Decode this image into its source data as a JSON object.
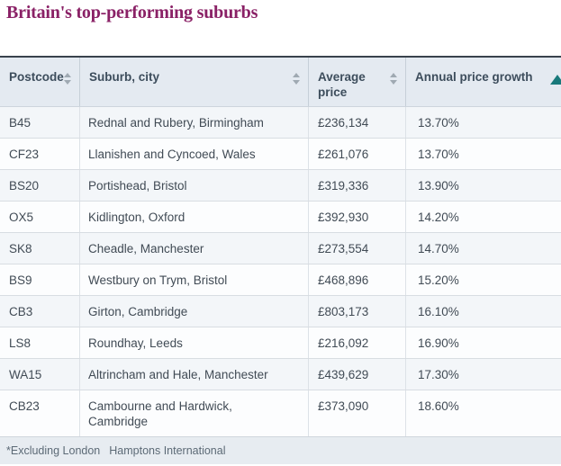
{
  "title": "Britain's top-performing suburbs",
  "colors": {
    "title_magenta": "#8a2166",
    "accent_teal": "#18797b",
    "header_bg": "#e4eaf1",
    "row_bg": "#f3f6f9"
  },
  "chart_data": {
    "type": "table",
    "title": "Britain's top-performing suburbs",
    "columns": [
      "Postcode",
      "Suburb, city",
      "Average price",
      "Annual price growth"
    ],
    "sort": {
      "column": "Annual price growth",
      "direction": "ascending"
    },
    "rows": [
      [
        "B45",
        "Rednal and Rubery, Birmingham",
        "£236,134",
        "13.70%"
      ],
      [
        "CF23",
        "Llanishen and Cyncoed, Wales",
        "£261,076",
        "13.70%"
      ],
      [
        "BS20",
        "Portishead, Bristol",
        "£319,336",
        "13.90%"
      ],
      [
        "OX5",
        "Kidlington, Oxford",
        "£392,930",
        "14.20%"
      ],
      [
        "SK8",
        "Cheadle, Manchester",
        "£273,554",
        "14.70%"
      ],
      [
        "BS9",
        "Westbury on Trym, Bristol",
        "£468,896",
        "15.20%"
      ],
      [
        "CB3",
        "Girton, Cambridge",
        "£803,173",
        "16.10%"
      ],
      [
        "LS8",
        "Roundhay, Leeds",
        "£216,092",
        "16.90%"
      ],
      [
        "WA15",
        "Altrincham and Hale, Manchester",
        "£439,629",
        "17.30%"
      ],
      [
        "CB23",
        "Cambourne and Hardwick, Cambridge",
        "£373,090",
        "18.60%"
      ]
    ]
  },
  "footer": {
    "note": "*Excluding London",
    "source": "Hamptons International"
  }
}
